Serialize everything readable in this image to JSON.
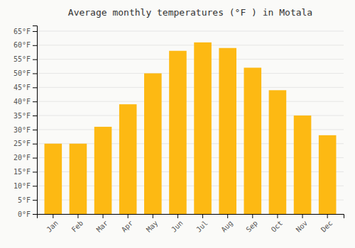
{
  "chart_data": {
    "type": "bar",
    "title": "Average monthly temperatures (°F ) in Motala",
    "categories": [
      "Jan",
      "Feb",
      "Mar",
      "Apr",
      "May",
      "Jun",
      "Jul",
      "Aug",
      "Sep",
      "Oct",
      "Nov",
      "Dec"
    ],
    "values": [
      25,
      25,
      31,
      39,
      50,
      58,
      61,
      59,
      52,
      44,
      35,
      28
    ],
    "color": "#FDB913",
    "ylim": [
      0,
      67
    ],
    "yticks": [
      {
        "value": 0,
        "label": "0°F"
      },
      {
        "value": 5,
        "label": "5°F"
      },
      {
        "value": 10,
        "label": "10°F"
      },
      {
        "value": 15,
        "label": "15°F"
      },
      {
        "value": 20,
        "label": "20°F"
      },
      {
        "value": 25,
        "label": "25°F"
      },
      {
        "value": 30,
        "label": "30°F"
      },
      {
        "value": 35,
        "label": "35°F"
      },
      {
        "value": 40,
        "label": "40°F"
      },
      {
        "value": 45,
        "label": "45°F"
      },
      {
        "value": 50,
        "label": "50°F"
      },
      {
        "value": 55,
        "label": "55°F"
      },
      {
        "value": 60,
        "label": "60°F"
      },
      {
        "value": 65,
        "label": "65°F"
      }
    ],
    "grid": true
  }
}
